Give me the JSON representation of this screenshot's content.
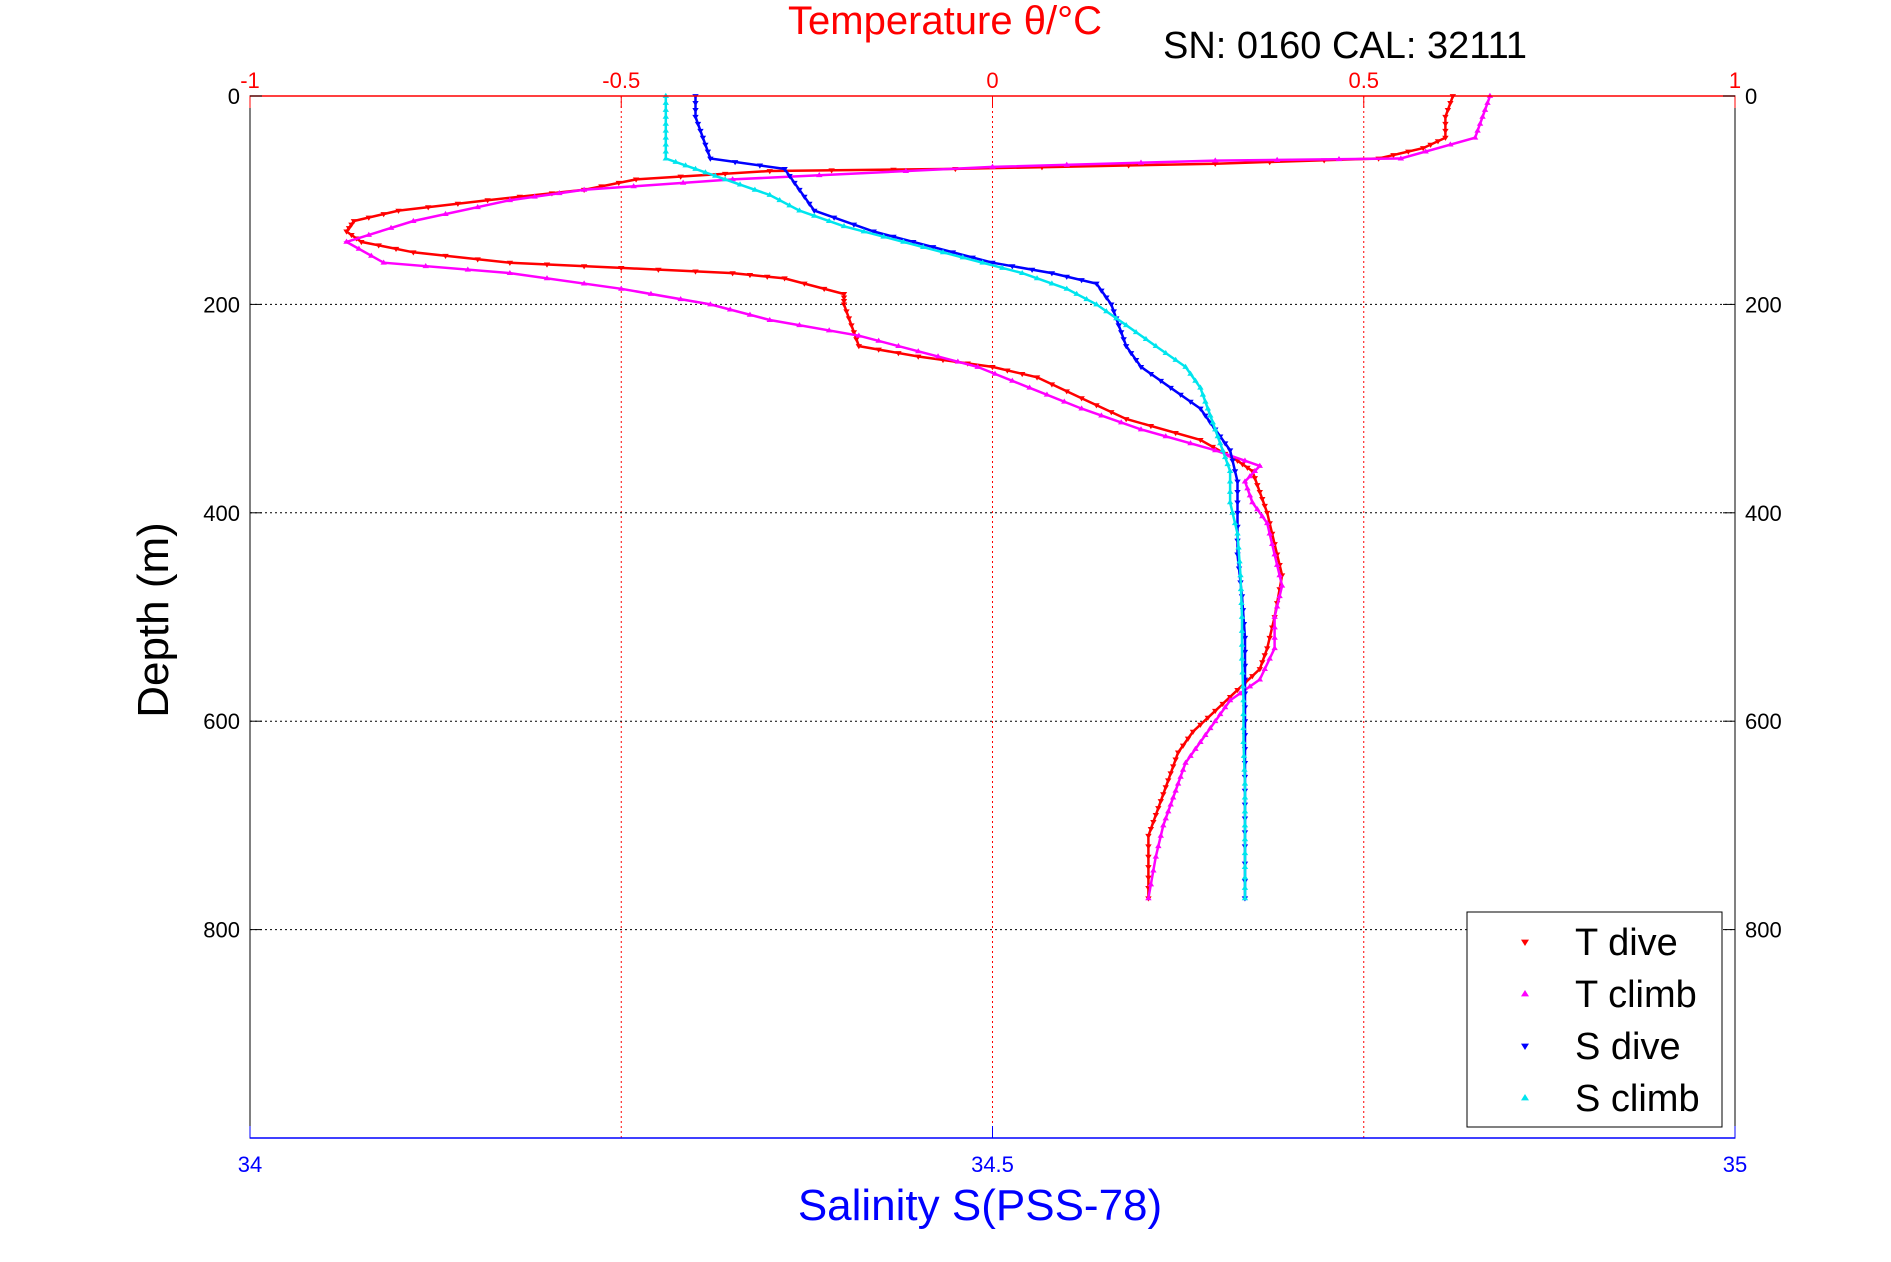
{
  "chart_data": {
    "type": "scatter",
    "title": "Temperature θ/°C",
    "annotation": "SN: 0160  CAL: 32111",
    "xlabel_bottom": "Salinity S(PSS-78)",
    "xlabel_top": "Temperature θ/°C",
    "ylabel": "Depth (m)",
    "xlim_bottom": [
      34,
      35
    ],
    "xlim_top": [
      -1,
      1
    ],
    "ylim": [
      0,
      1000
    ],
    "y_reversed": true,
    "xticks_bottom": [
      "34",
      "34.5",
      "35"
    ],
    "xticks_top": [
      "-1",
      "-0.5",
      "0",
      "0.5",
      "1"
    ],
    "yticks": [
      "0",
      "200",
      "400",
      "600",
      "800"
    ],
    "grid": true,
    "legend_position": "bottom-right",
    "colors": {
      "temperature_axis": "#ff0000",
      "salinity_axis": "#0000ff",
      "grid_temperature": "#ff0000",
      "grid_depth": "#000000"
    },
    "series": [
      {
        "name": "T dive",
        "axis": "temperature",
        "color": "#ff0000",
        "marker": "triangle-down",
        "points": [
          [
            0.62,
            0
          ],
          [
            0.61,
            20
          ],
          [
            0.61,
            40
          ],
          [
            0.58,
            50
          ],
          [
            0.52,
            60
          ],
          [
            0.3,
            65
          ],
          [
            -0.05,
            70
          ],
          [
            -0.3,
            72
          ],
          [
            -0.48,
            80
          ],
          [
            -0.55,
            90
          ],
          [
            -0.68,
            100
          ],
          [
            -0.8,
            110
          ],
          [
            -0.86,
            120
          ],
          [
            -0.87,
            130
          ],
          [
            -0.85,
            140
          ],
          [
            -0.78,
            150
          ],
          [
            -0.65,
            160
          ],
          [
            -0.5,
            165
          ],
          [
            -0.35,
            170
          ],
          [
            -0.28,
            175
          ],
          [
            -0.2,
            190
          ],
          [
            -0.2,
            200
          ],
          [
            -0.19,
            220
          ],
          [
            -0.18,
            240
          ],
          [
            -0.1,
            250
          ],
          [
            0.0,
            260
          ],
          [
            0.06,
            270
          ],
          [
            0.12,
            290
          ],
          [
            0.18,
            310
          ],
          [
            0.28,
            330
          ],
          [
            0.33,
            350
          ],
          [
            0.35,
            360
          ],
          [
            0.36,
            380
          ],
          [
            0.37,
            400
          ],
          [
            0.38,
            430
          ],
          [
            0.39,
            460
          ],
          [
            0.38,
            500
          ],
          [
            0.37,
            530
          ],
          [
            0.36,
            550
          ],
          [
            0.33,
            570
          ],
          [
            0.3,
            590
          ],
          [
            0.27,
            610
          ],
          [
            0.25,
            630
          ],
          [
            0.24,
            650
          ],
          [
            0.23,
            670
          ],
          [
            0.22,
            690
          ],
          [
            0.21,
            710
          ],
          [
            0.21,
            740
          ],
          [
            0.21,
            770
          ]
        ]
      },
      {
        "name": "T climb",
        "axis": "temperature",
        "color": "#ff00ff",
        "marker": "triangle-up",
        "points": [
          [
            0.67,
            0
          ],
          [
            0.66,
            20
          ],
          [
            0.65,
            40
          ],
          [
            0.55,
            60
          ],
          [
            0.3,
            62
          ],
          [
            0.0,
            68
          ],
          [
            -0.35,
            80
          ],
          [
            -0.55,
            90
          ],
          [
            -0.65,
            100
          ],
          [
            -0.78,
            120
          ],
          [
            -0.87,
            140
          ],
          [
            -0.82,
            160
          ],
          [
            -0.65,
            170
          ],
          [
            -0.5,
            185
          ],
          [
            -0.38,
            200
          ],
          [
            -0.3,
            215
          ],
          [
            -0.18,
            230
          ],
          [
            -0.1,
            245
          ],
          [
            -0.02,
            260
          ],
          [
            0.05,
            280
          ],
          [
            0.12,
            300
          ],
          [
            0.2,
            320
          ],
          [
            0.3,
            340
          ],
          [
            0.36,
            355
          ],
          [
            0.34,
            370
          ],
          [
            0.35,
            390
          ],
          [
            0.37,
            410
          ],
          [
            0.38,
            440
          ],
          [
            0.39,
            470
          ],
          [
            0.38,
            500
          ],
          [
            0.38,
            530
          ],
          [
            0.36,
            560
          ],
          [
            0.32,
            580
          ],
          [
            0.3,
            600
          ],
          [
            0.28,
            620
          ],
          [
            0.26,
            640
          ],
          [
            0.25,
            660
          ],
          [
            0.24,
            680
          ],
          [
            0.23,
            700
          ],
          [
            0.22,
            730
          ],
          [
            0.21,
            770
          ]
        ]
      },
      {
        "name": "S dive",
        "axis": "salinity",
        "color": "#0000ff",
        "marker": "triangle-down",
        "points": [
          [
            34.3,
            0
          ],
          [
            34.3,
            20
          ],
          [
            34.305,
            40
          ],
          [
            34.31,
            60
          ],
          [
            34.36,
            70
          ],
          [
            34.37,
            90
          ],
          [
            34.38,
            110
          ],
          [
            34.42,
            130
          ],
          [
            34.46,
            145
          ],
          [
            34.5,
            160
          ],
          [
            34.54,
            170
          ],
          [
            34.57,
            180
          ],
          [
            34.58,
            200
          ],
          [
            34.585,
            220
          ],
          [
            34.59,
            240
          ],
          [
            34.6,
            260
          ],
          [
            34.62,
            280
          ],
          [
            34.64,
            300
          ],
          [
            34.65,
            320
          ],
          [
            34.66,
            340
          ],
          [
            34.665,
            370
          ],
          [
            34.665,
            400
          ],
          [
            34.665,
            440
          ],
          [
            34.668,
            480
          ],
          [
            34.67,
            520
          ],
          [
            34.67,
            560
          ],
          [
            34.67,
            600
          ],
          [
            34.67,
            640
          ],
          [
            34.67,
            680
          ],
          [
            34.67,
            720
          ],
          [
            34.67,
            770
          ]
        ]
      },
      {
        "name": "S climb",
        "axis": "salinity",
        "color": "#00e5ee",
        "marker": "triangle-up",
        "points": [
          [
            34.28,
            0
          ],
          [
            34.28,
            20
          ],
          [
            34.28,
            40
          ],
          [
            34.28,
            60
          ],
          [
            34.3,
            70
          ],
          [
            34.32,
            80
          ],
          [
            34.35,
            95
          ],
          [
            34.37,
            110
          ],
          [
            34.4,
            125
          ],
          [
            34.44,
            140
          ],
          [
            34.48,
            155
          ],
          [
            34.52,
            170
          ],
          [
            34.55,
            185
          ],
          [
            34.57,
            200
          ],
          [
            34.59,
            220
          ],
          [
            34.61,
            240
          ],
          [
            34.63,
            260
          ],
          [
            34.64,
            280
          ],
          [
            34.645,
            300
          ],
          [
            34.65,
            320
          ],
          [
            34.655,
            340
          ],
          [
            34.66,
            360
          ],
          [
            34.66,
            390
          ],
          [
            34.665,
            420
          ],
          [
            34.667,
            460
          ],
          [
            34.668,
            500
          ],
          [
            34.668,
            540
          ],
          [
            34.669,
            580
          ],
          [
            34.669,
            620
          ],
          [
            34.67,
            660
          ],
          [
            34.67,
            700
          ],
          [
            34.67,
            740
          ],
          [
            34.67,
            770
          ]
        ]
      }
    ]
  }
}
